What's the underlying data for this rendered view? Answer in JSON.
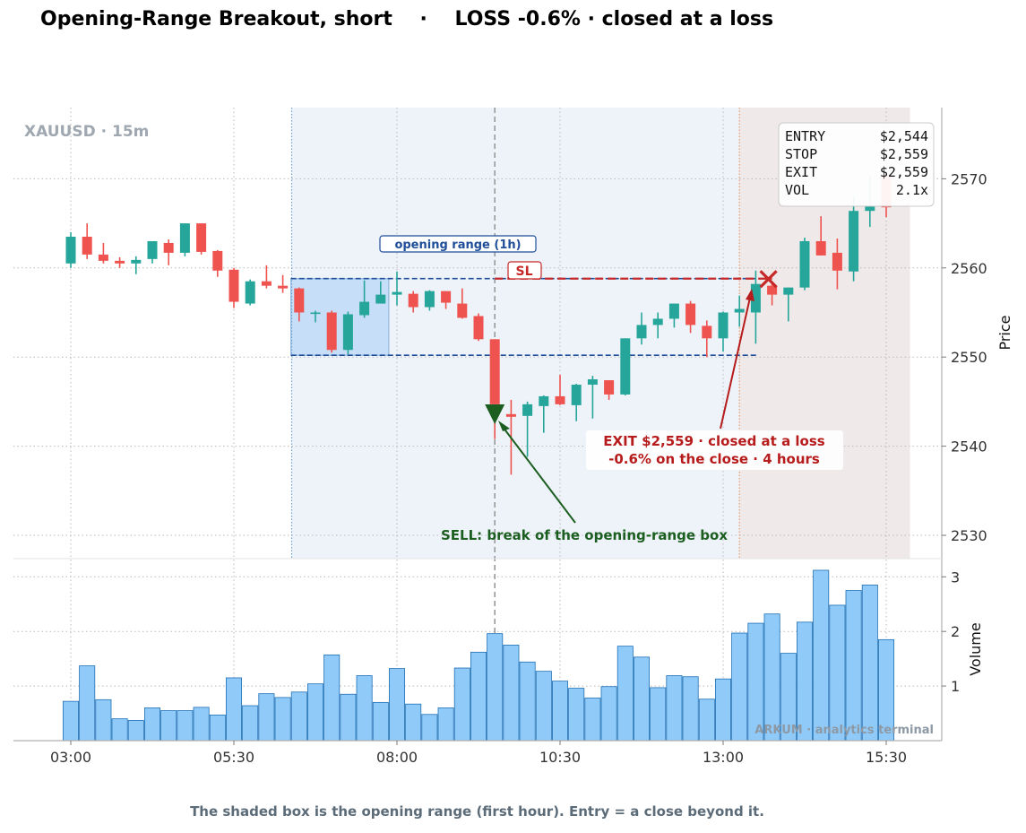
{
  "title": "Opening-Range Breakout, short    ·    LOSS -0.6% · closed at a loss",
  "footer": "The shaded box is the opening range (first hour). Entry = a close beyond it.",
  "watermark_symbol": "XAUUSD · 15m",
  "watermark_brand": "ARKUM · analytics terminal",
  "info_box": [
    {
      "label": "ENTRY",
      "value": "$2,544"
    },
    {
      "label": "STOP",
      "value": "$2,559"
    },
    {
      "label": "EXIT",
      "value": "$2,559"
    },
    {
      "label": "VOL",
      "value": "2.1x"
    }
  ],
  "annotations": {
    "opening_range": "opening range (1h)",
    "sl": "SL",
    "sell": "SELL: break of the opening-range box",
    "exit_line1": "EXIT $2,559 · closed at a loss",
    "exit_line2": "-0.6% on the close  ·  4 hours"
  },
  "colors": {
    "up": "#26a69a",
    "down": "#ef5350",
    "volume": "#90caf9",
    "volume_edge": "#1f6fb5",
    "range_box": "#1f4e99",
    "sl": "#c62828",
    "sell": "#1b5e20",
    "exit_text": "#b71c1c"
  },
  "chart_data": [
    {
      "type": "candlestick",
      "ylabel": "Price",
      "x_ticks": [
        "03:00",
        "05:30",
        "08:00",
        "10:30",
        "13:00",
        "15:30"
      ],
      "y_ticks": [
        2530,
        2540,
        2550,
        2560,
        2570
      ],
      "ylim": [
        2527.4,
        2578.2
      ],
      "candles": [
        {
          "t": "03:00",
          "o": 2560.5,
          "h": 2564.0,
          "l": 2560.0,
          "c": 2563.5
        },
        {
          "t": "03:15",
          "o": 2563.5,
          "h": 2565.0,
          "l": 2561.0,
          "c": 2561.5
        },
        {
          "t": "03:30",
          "o": 2561.5,
          "h": 2562.8,
          "l": 2560.5,
          "c": 2560.8
        },
        {
          "t": "03:45",
          "o": 2560.8,
          "h": 2561.2,
          "l": 2560.0,
          "c": 2560.5
        },
        {
          "t": "04:00",
          "o": 2560.5,
          "h": 2561.3,
          "l": 2559.3,
          "c": 2560.9
        },
        {
          "t": "04:15",
          "o": 2561.0,
          "h": 2563.0,
          "l": 2560.5,
          "c": 2563.0
        },
        {
          "t": "04:30",
          "o": 2562.8,
          "h": 2563.2,
          "l": 2560.3,
          "c": 2561.7
        },
        {
          "t": "04:45",
          "o": 2561.7,
          "h": 2565.0,
          "l": 2561.3,
          "c": 2565.0
        },
        {
          "t": "05:00",
          "o": 2565.0,
          "h": 2565.0,
          "l": 2561.5,
          "c": 2561.8
        },
        {
          "t": "05:15",
          "o": 2561.9,
          "h": 2562.0,
          "l": 2559.0,
          "c": 2559.7
        },
        {
          "t": "05:30",
          "o": 2559.8,
          "h": 2560.0,
          "l": 2555.5,
          "c": 2556.2
        },
        {
          "t": "05:45",
          "o": 2556.0,
          "h": 2558.7,
          "l": 2555.8,
          "c": 2558.5
        },
        {
          "t": "06:00",
          "o": 2558.5,
          "h": 2560.3,
          "l": 2557.7,
          "c": 2558.0
        },
        {
          "t": "06:15",
          "o": 2558.0,
          "h": 2559.2,
          "l": 2557.2,
          "c": 2557.7
        },
        {
          "t": "06:30",
          "o": 2557.7,
          "h": 2557.8,
          "l": 2554.0,
          "c": 2555.0
        },
        {
          "t": "06:45",
          "o": 2555.0,
          "h": 2555.2,
          "l": 2553.9,
          "c": 2555.0
        },
        {
          "t": "07:00",
          "o": 2555.0,
          "h": 2555.2,
          "l": 2550.5,
          "c": 2550.8
        },
        {
          "t": "07:15",
          "o": 2550.8,
          "h": 2555.1,
          "l": 2550.3,
          "c": 2554.8
        },
        {
          "t": "07:30",
          "o": 2554.7,
          "h": 2558.6,
          "l": 2554.4,
          "c": 2556.2
        },
        {
          "t": "07:45",
          "o": 2556.0,
          "h": 2558.5,
          "l": 2556.0,
          "c": 2557.0
        },
        {
          "t": "08:00",
          "o": 2557.0,
          "h": 2559.6,
          "l": 2555.8,
          "c": 2557.3
        },
        {
          "t": "08:15",
          "o": 2557.1,
          "h": 2557.4,
          "l": 2555.0,
          "c": 2555.6
        },
        {
          "t": "08:30",
          "o": 2555.6,
          "h": 2557.5,
          "l": 2555.2,
          "c": 2557.4
        },
        {
          "t": "08:45",
          "o": 2557.4,
          "h": 2557.4,
          "l": 2555.4,
          "c": 2556.1
        },
        {
          "t": "09:00",
          "o": 2556.0,
          "h": 2557.7,
          "l": 2554.3,
          "c": 2554.4
        },
        {
          "t": "09:15",
          "o": 2554.6,
          "h": 2554.9,
          "l": 2551.8,
          "c": 2552.0
        },
        {
          "t": "09:30",
          "o": 2552.0,
          "h": 2552.0,
          "l": 2540.8,
          "c": 2544.7
        },
        {
          "t": "09:45",
          "o": 2543.6,
          "h": 2545.2,
          "l": 2536.8,
          "c": 2543.3
        },
        {
          "t": "10:00",
          "o": 2543.4,
          "h": 2545.0,
          "l": 2538.8,
          "c": 2544.7
        },
        {
          "t": "10:15",
          "o": 2544.5,
          "h": 2545.7,
          "l": 2541.5,
          "c": 2545.6
        },
        {
          "t": "10:30",
          "o": 2545.6,
          "h": 2548.0,
          "l": 2544.6,
          "c": 2544.7
        },
        {
          "t": "10:45",
          "o": 2544.6,
          "h": 2547.0,
          "l": 2542.8,
          "c": 2546.9
        },
        {
          "t": "11:00",
          "o": 2546.9,
          "h": 2547.9,
          "l": 2543.1,
          "c": 2547.5
        },
        {
          "t": "11:15",
          "o": 2547.4,
          "h": 2547.4,
          "l": 2545.2,
          "c": 2545.8
        },
        {
          "t": "11:30",
          "o": 2545.8,
          "h": 2552.1,
          "l": 2545.7,
          "c": 2552.1
        },
        {
          "t": "11:45",
          "o": 2552.1,
          "h": 2555.0,
          "l": 2551.4,
          "c": 2553.6
        },
        {
          "t": "12:00",
          "o": 2553.6,
          "h": 2555.0,
          "l": 2552.1,
          "c": 2554.3
        },
        {
          "t": "12:15",
          "o": 2554.3,
          "h": 2556.0,
          "l": 2553.3,
          "c": 2556.0
        },
        {
          "t": "12:30",
          "o": 2556.0,
          "h": 2556.3,
          "l": 2552.7,
          "c": 2553.6
        },
        {
          "t": "12:45",
          "o": 2553.5,
          "h": 2554.1,
          "l": 2550.0,
          "c": 2552.1
        },
        {
          "t": "13:00",
          "o": 2552.1,
          "h": 2555.1,
          "l": 2550.6,
          "c": 2555.0
        },
        {
          "t": "13:15",
          "o": 2555.0,
          "h": 2556.9,
          "l": 2553.4,
          "c": 2555.4
        },
        {
          "t": "13:30",
          "o": 2555.0,
          "h": 2559.7,
          "l": 2551.5,
          "c": 2558.2
        },
        {
          "t": "13:45",
          "o": 2558.0,
          "h": 2558.5,
          "l": 2555.8,
          "c": 2557.0
        },
        {
          "t": "14:00",
          "o": 2557.0,
          "h": 2557.8,
          "l": 2554.0,
          "c": 2557.8
        },
        {
          "t": "14:15",
          "o": 2557.8,
          "h": 2563.4,
          "l": 2557.5,
          "c": 2563.0
        },
        {
          "t": "14:30",
          "o": 2563.0,
          "h": 2565.8,
          "l": 2561.4,
          "c": 2561.4
        },
        {
          "t": "14:45",
          "o": 2561.7,
          "h": 2563.3,
          "l": 2557.6,
          "c": 2559.7
        },
        {
          "t": "15:00",
          "o": 2559.6,
          "h": 2568.0,
          "l": 2558.5,
          "c": 2566.4
        },
        {
          "t": "15:15",
          "o": 2566.4,
          "h": 2570.3,
          "l": 2564.6,
          "c": 2566.9
        },
        {
          "t": "15:30",
          "o": 2570.5,
          "h": 2571.0,
          "l": 2565.7,
          "c": 2566.8
        }
      ],
      "opening_range": {
        "start": "06:30",
        "end": "07:45",
        "high": 2558.8,
        "low": 2550.2
      },
      "entry": {
        "time": "09:30",
        "price": 2544.0
      },
      "stop_price": 2558.8,
      "exit": {
        "time": "13:45",
        "price": 2558.8
      },
      "pre_entry_shading": {
        "start": "06:30",
        "end": "13:15"
      },
      "post_exit_shading": {
        "start": "13:15",
        "end": "15:45"
      }
    },
    {
      "type": "bar",
      "ylabel": "Volume",
      "y_ticks": [
        1,
        2,
        3
      ],
      "ylim": [
        0,
        3.3
      ],
      "values": [
        0.72,
        1.37,
        0.75,
        0.4,
        0.37,
        0.6,
        0.55,
        0.55,
        0.61,
        0.47,
        1.15,
        0.64,
        0.86,
        0.79,
        0.89,
        1.04,
        1.57,
        0.85,
        1.19,
        0.7,
        1.32,
        0.67,
        0.48,
        0.6,
        1.33,
        1.62,
        1.96,
        1.75,
        1.44,
        1.27,
        1.09,
        0.96,
        0.78,
        0.99,
        1.73,
        1.53,
        0.97,
        1.19,
        1.17,
        0.76,
        1.13,
        1.97,
        2.15,
        2.32,
        1.6,
        2.17,
        3.12,
        2.48,
        2.75,
        2.85,
        1.85
      ]
    }
  ]
}
